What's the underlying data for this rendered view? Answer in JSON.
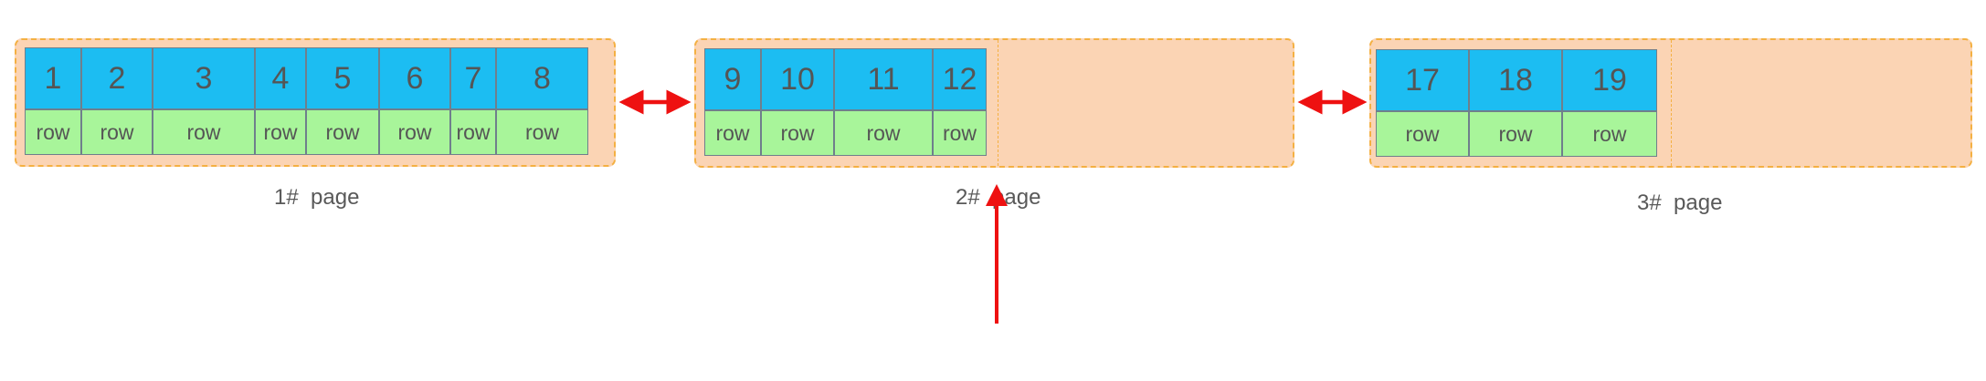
{
  "colors": {
    "page_fill": "#fbd4b4",
    "page_border": "#f4b042",
    "key_cell": "#1cbdf2",
    "row_cell": "#a8f59a",
    "arrow": "#ee1111"
  },
  "pages": [
    {
      "label": "1#  page",
      "records": [
        {
          "key": "1",
          "row": "row"
        },
        {
          "key": "2",
          "row": "row"
        },
        {
          "key": "3",
          "row": "row"
        },
        {
          "key": "4",
          "row": "row"
        },
        {
          "key": "5",
          "row": "row"
        },
        {
          "key": "6",
          "row": "row"
        },
        {
          "key": "7",
          "row": "row"
        },
        {
          "key": "8",
          "row": "row"
        }
      ]
    },
    {
      "label": "2#  page",
      "records": [
        {
          "key": "9",
          "row": "row"
        },
        {
          "key": "10",
          "row": "row"
        },
        {
          "key": "11",
          "row": "row"
        },
        {
          "key": "12",
          "row": "row"
        }
      ]
    },
    {
      "label": "3#  page",
      "records": [
        {
          "key": "17",
          "row": "row"
        },
        {
          "key": "18",
          "row": "row"
        },
        {
          "key": "19",
          "row": "row"
        }
      ]
    }
  ]
}
